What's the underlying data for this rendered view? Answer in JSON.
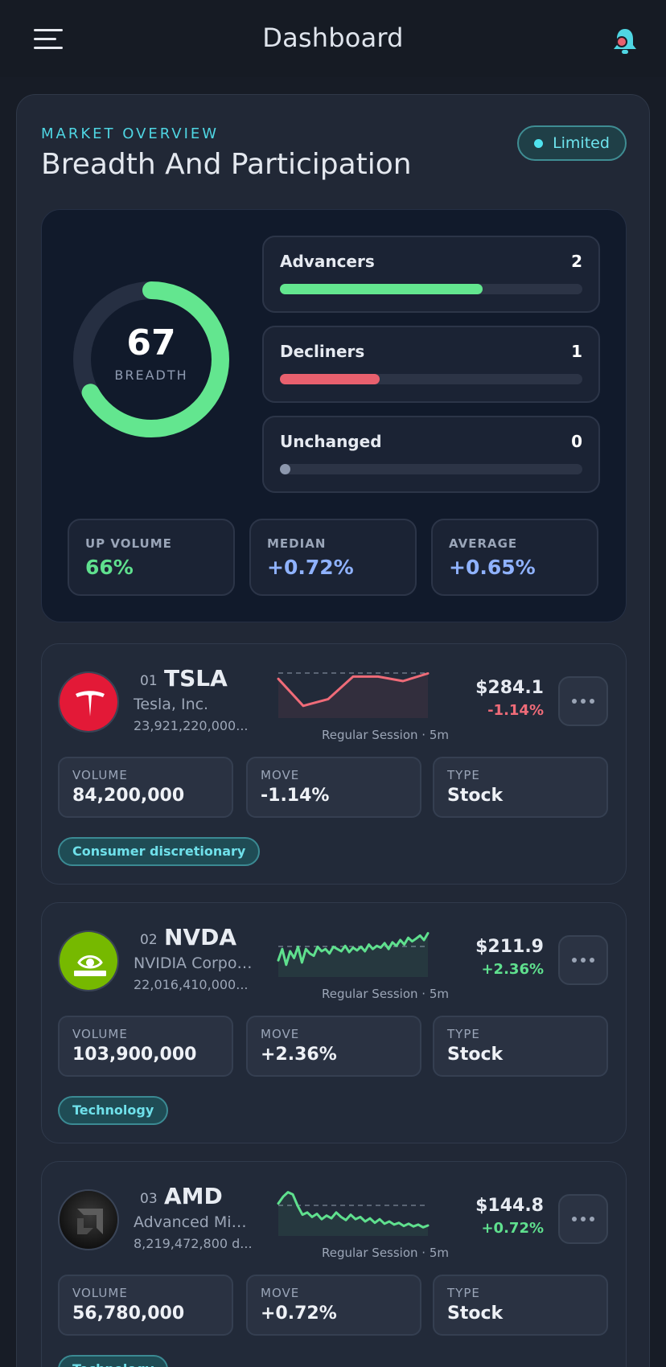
{
  "header": {
    "title": "Dashboard"
  },
  "overview": {
    "overline": "MARKET OVERVIEW",
    "title": "Breadth And Participation",
    "badge": "Limited"
  },
  "breadth": {
    "score": "67",
    "score_fraction": 0.67,
    "label": "BREADTH",
    "rows": [
      {
        "label": "Advancers",
        "count": "2",
        "fill": 0.67,
        "color": "#63e68f"
      },
      {
        "label": "Decliners",
        "count": "1",
        "fill": 0.33,
        "color": "#e8606e"
      },
      {
        "label": "Unchanged",
        "count": "0",
        "fill": 0.0,
        "color": "#8c97ad"
      }
    ],
    "metrics": [
      {
        "label": "UP VOLUME",
        "value": "66%",
        "tone": "green"
      },
      {
        "label": "MEDIAN",
        "value": "+0.72%",
        "tone": "blue"
      },
      {
        "label": "AVERAGE",
        "value": "+0.65%",
        "tone": "blue"
      }
    ]
  },
  "stocks": [
    {
      "index": "01",
      "ticker": "TSLA",
      "company": "Tesla, Inc.",
      "market_cap": "23,921,220,000...",
      "session": "Regular Session · 5m",
      "price": "$284.1",
      "change": "-1.14%",
      "direction": "down",
      "logo": "tesla-logo-icon",
      "stats": [
        {
          "label": "VOLUME",
          "value": "84,200,000"
        },
        {
          "label": "MOVE",
          "value": "-1.14%"
        },
        {
          "label": "TYPE",
          "value": "Stock"
        }
      ],
      "tag": "Consumer discretionary",
      "spark": [
        0.8,
        0.2,
        0.35,
        0.85,
        0.85,
        0.75,
        0.92
      ]
    },
    {
      "index": "02",
      "ticker": "NVDA",
      "company": "NVIDIA Corpor...",
      "market_cap": "22,016,410,000...",
      "session": "Regular Session · 5m",
      "price": "$211.9",
      "change": "+2.36%",
      "direction": "up",
      "logo": "nvidia-logo-icon",
      "stats": [
        {
          "label": "VOLUME",
          "value": "103,900,000"
        },
        {
          "label": "MOVE",
          "value": "+2.36%"
        },
        {
          "label": "TYPE",
          "value": "Stock"
        }
      ],
      "tag": "Technology",
      "spark": [
        0.3,
        0.55,
        0.2,
        0.5,
        0.35,
        0.6,
        0.25,
        0.55,
        0.45,
        0.4,
        0.6,
        0.5,
        0.55,
        0.45,
        0.6,
        0.55,
        0.5,
        0.62,
        0.48,
        0.58,
        0.52,
        0.6,
        0.5,
        0.65,
        0.55,
        0.62,
        0.58,
        0.68,
        0.55,
        0.7,
        0.62,
        0.75,
        0.65,
        0.8,
        0.72,
        0.78,
        0.85,
        0.75,
        0.9
      ]
    },
    {
      "index": "03",
      "ticker": "AMD",
      "company": "Advanced Micr...",
      "market_cap": "8,219,472,800 d...",
      "session": "Regular Session · 5m",
      "price": "$144.8",
      "change": "+0.72%",
      "direction": "up",
      "logo": "amd-logo-icon",
      "stats": [
        {
          "label": "VOLUME",
          "value": "56,780,000"
        },
        {
          "label": "MOVE",
          "value": "+0.72%"
        },
        {
          "label": "TYPE",
          "value": "Stock"
        }
      ],
      "tag": "Technology",
      "spark": [
        0.65,
        0.8,
        0.9,
        0.85,
        0.6,
        0.4,
        0.45,
        0.35,
        0.42,
        0.3,
        0.38,
        0.32,
        0.45,
        0.35,
        0.28,
        0.4,
        0.3,
        0.35,
        0.25,
        0.32,
        0.22,
        0.3,
        0.2,
        0.25,
        0.18,
        0.22,
        0.15,
        0.2,
        0.14,
        0.18,
        0.12,
        0.16
      ]
    }
  ],
  "colors": {
    "green": "#5fe08e",
    "red": "#ef6b78",
    "blue": "#8fb2ff",
    "accent": "#4fd6e3"
  }
}
